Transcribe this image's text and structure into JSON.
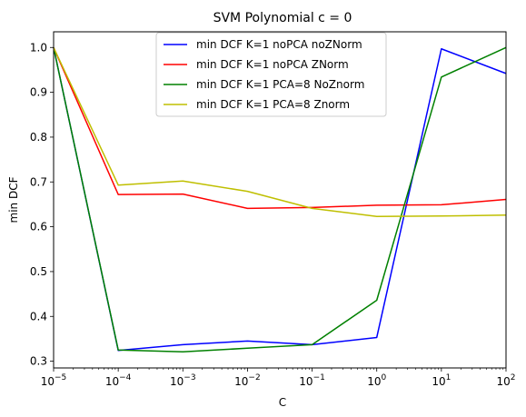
{
  "chart_data": {
    "type": "line",
    "title": "SVM Polynomial c = 0",
    "xlabel": "C",
    "ylabel": "min DCF",
    "x_scale": "log",
    "x": [
      1e-05,
      0.0001,
      0.001,
      0.01,
      0.1,
      1,
      10,
      100
    ],
    "xlim": [
      1e-05,
      100
    ],
    "ylim": [
      0.285,
      1.035
    ],
    "x_tick_labels": [
      {
        "value": 1e-05,
        "base": "10",
        "exp": "−5"
      },
      {
        "value": 0.0001,
        "base": "10",
        "exp": "−4"
      },
      {
        "value": 0.001,
        "base": "10",
        "exp": "−3"
      },
      {
        "value": 0.01,
        "base": "10",
        "exp": "−2"
      },
      {
        "value": 0.1,
        "base": "10",
        "exp": "−1"
      },
      {
        "value": 1,
        "base": "10",
        "exp": "0"
      },
      {
        "value": 10,
        "base": "10",
        "exp": "1"
      },
      {
        "value": 100,
        "base": "10",
        "exp": "2"
      }
    ],
    "y_ticks": [
      0.3,
      0.4,
      0.5,
      0.6,
      0.7,
      0.8,
      0.9,
      1.0
    ],
    "y_tick_labels": [
      "0.3",
      "0.4",
      "0.5",
      "0.6",
      "0.7",
      "0.8",
      "0.9",
      "1.0"
    ],
    "grid": false,
    "legend_position": "top-center",
    "series": [
      {
        "name": "min DCF K=1 noPCA noZNorm",
        "color": "#0000ff",
        "values": [
          1.0,
          0.324,
          0.337,
          0.345,
          0.337,
          0.353,
          0.997,
          0.942
        ]
      },
      {
        "name": "min DCF K=1 noPCA ZNorm",
        "color": "#ff0000",
        "values": [
          1.0,
          0.672,
          0.673,
          0.641,
          0.643,
          0.648,
          0.649,
          0.661
        ]
      },
      {
        "name": "min DCF K=1 PCA=8 NoZnorm",
        "color": "#008000",
        "values": [
          1.0,
          0.325,
          0.321,
          0.329,
          0.337,
          0.436,
          0.934,
          1.0
        ]
      },
      {
        "name": "min DCF K=1 PCA=8 Znorm",
        "color": "#bfbf00",
        "values": [
          1.0,
          0.693,
          0.702,
          0.679,
          0.641,
          0.623,
          0.624,
          0.626
        ]
      }
    ]
  }
}
